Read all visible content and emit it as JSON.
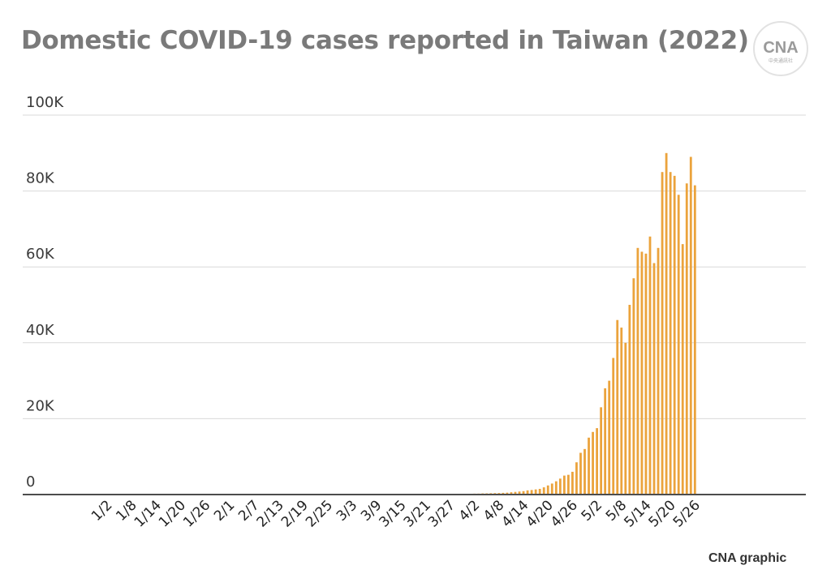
{
  "title": "Domestic COVID-19 cases reported in Taiwan (2022)",
  "logo": {
    "icon": "cna-logo-icon",
    "text": "CNA",
    "subtext": "中央通訊社"
  },
  "credit": "CNA graphic",
  "colors": {
    "bar": "#eba33c",
    "grid": "#d9d9d9",
    "axis": "#4d4d4d",
    "title": "#7a7a7a"
  },
  "chart_data": {
    "type": "bar",
    "title": "Domestic COVID-19 cases reported in Taiwan (2022)",
    "xlabel": "",
    "ylabel": "",
    "ylim": [
      0,
      100000
    ],
    "yticks": [
      0,
      20000,
      40000,
      60000,
      80000,
      100000
    ],
    "ytick_labels": [
      "0",
      "20K",
      "40K",
      "60K",
      "80K",
      "100K"
    ],
    "grid": true,
    "legend": "none",
    "x_start": "1/1",
    "x_end": "5/26",
    "xtick_labels": [
      "1/2",
      "1/8",
      "1/14",
      "1/20",
      "1/26",
      "2/1",
      "2/7",
      "2/13",
      "2/19",
      "2/25",
      "3/3",
      "3/9",
      "3/15",
      "3/21",
      "3/27",
      "4/2",
      "4/8",
      "4/14",
      "4/20",
      "4/26",
      "5/2",
      "5/8",
      "5/14",
      "5/20",
      "5/26"
    ],
    "values": [
      0,
      0,
      0,
      0,
      0,
      0,
      0,
      0,
      0,
      0,
      0,
      0,
      0,
      0,
      0,
      0,
      0,
      0,
      0,
      0,
      0,
      0,
      0,
      0,
      0,
      0,
      0,
      0,
      0,
      0,
      0,
      0,
      0,
      0,
      0,
      0,
      0,
      0,
      0,
      0,
      0,
      0,
      0,
      0,
      0,
      0,
      0,
      0,
      0,
      0,
      0,
      0,
      0,
      0,
      0,
      0,
      0,
      0,
      0,
      0,
      0,
      0,
      0,
      0,
      0,
      0,
      0,
      0,
      0,
      0,
      0,
      0,
      0,
      0,
      0,
      0,
      0,
      0,
      0,
      0,
      0,
      0,
      0,
      0,
      0,
      0,
      0,
      0,
      0,
      200,
      240,
      250,
      300,
      310,
      350,
      380,
      400,
      450,
      500,
      600,
      700,
      800,
      900,
      1100,
      1200,
      1350,
      1500,
      1900,
      2400,
      2900,
      3500,
      4200,
      5000,
      5200,
      6000,
      8500,
      11000,
      12000,
      15000,
      16500,
      17500,
      23000,
      28000,
      30000,
      36000,
      46000,
      44000,
      40000,
      50000,
      57000,
      65000,
      64000,
      63500,
      68000,
      61000,
      65000,
      85000,
      90000,
      85000,
      84000,
      79000,
      66000,
      82000,
      89000,
      81500
    ]
  }
}
